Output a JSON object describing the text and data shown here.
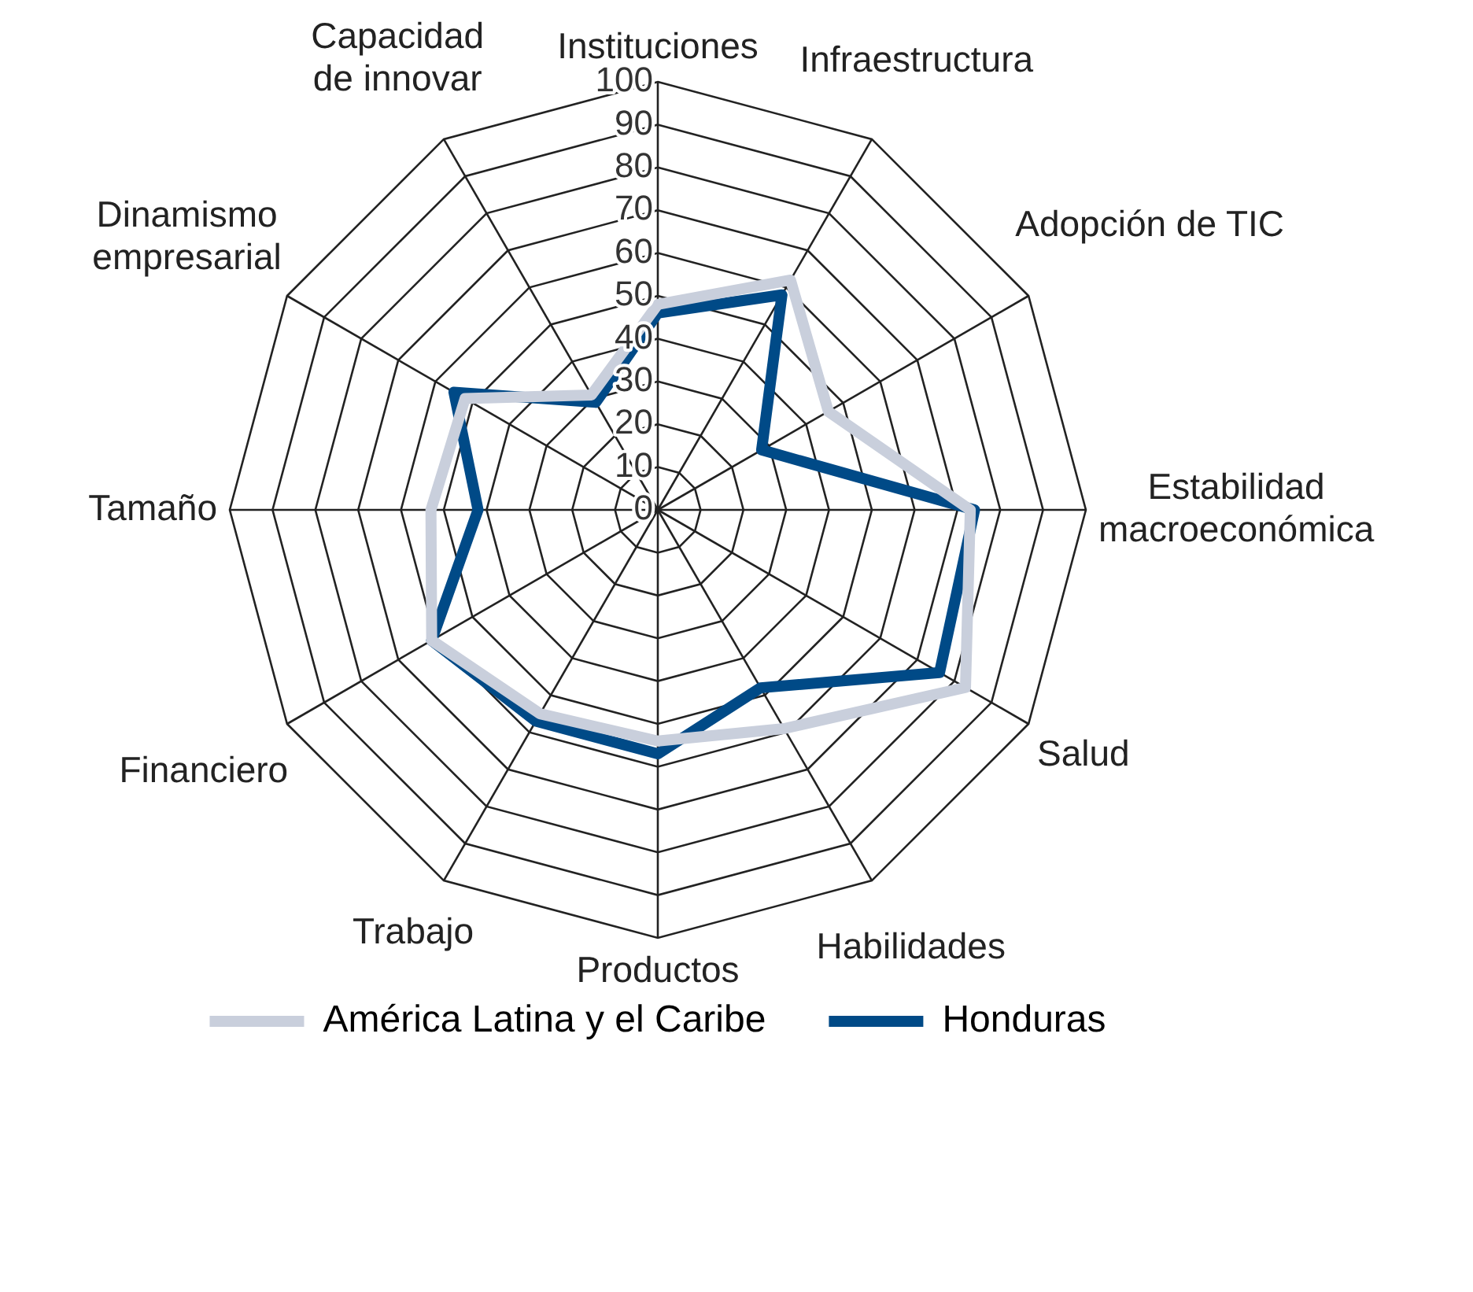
{
  "chart_data": {
    "type": "radar",
    "categories": [
      "Instituciones",
      "Infraestructura",
      "Adopción de TIC",
      "Estabilidad macroeconómica",
      "Salud",
      "Habilidades",
      "Productos",
      "Trabajo",
      "Financiero",
      "Tamaño",
      "Dinamismo empresarial",
      "Capacidad de innovar"
    ],
    "series": [
      {
        "name": "América Latina y el Caribe",
        "color": "#c9cfdc",
        "values": [
          48,
          62,
          46,
          73,
          83,
          59,
          54,
          55,
          61,
          53,
          52,
          31
        ]
      },
      {
        "name": "Honduras",
        "color": "#004a87",
        "values": [
          46,
          58,
          28,
          74,
          76,
          48,
          57,
          57,
          61,
          42,
          55,
          29
        ]
      }
    ],
    "ylim": [
      0,
      100
    ],
    "yticks": [
      0,
      10,
      20,
      30,
      40,
      50,
      60,
      70,
      80,
      90,
      100
    ],
    "legend": "bottom",
    "marker": "none",
    "line_style": "solid"
  }
}
